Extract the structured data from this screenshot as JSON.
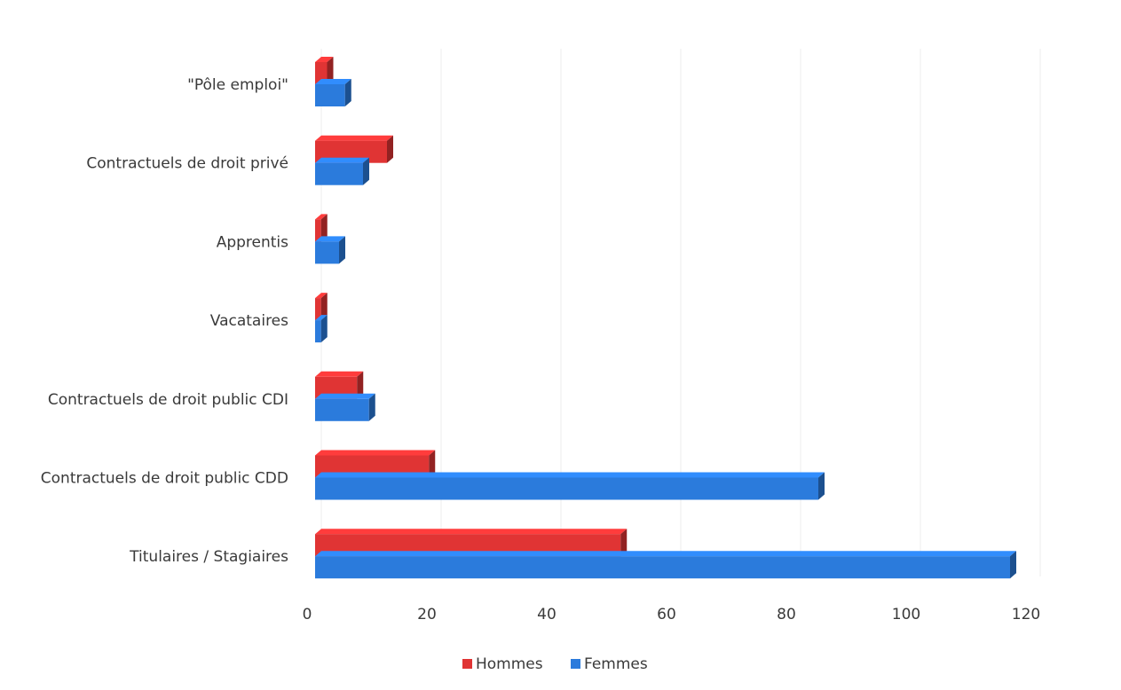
{
  "chart_data": {
    "type": "bar",
    "orientation": "horizontal",
    "style": "3d",
    "categories": [
      "\"Pôle emploi\"",
      "Contractuels de droit privé",
      "Apprentis",
      "Vacataires",
      "Contractuels de droit public CDI",
      "Contractuels de droit public CDD",
      "Titulaires / Stagiaires"
    ],
    "series": [
      {
        "name": "Hommes",
        "color": "#e03434",
        "values": [
          2,
          12,
          1,
          1,
          7,
          19,
          51
        ]
      },
      {
        "name": "Femmes",
        "color": "#2b7bdc",
        "values": [
          5,
          8,
          4,
          1,
          9,
          84,
          116
        ]
      }
    ],
    "xticks": [
      "0",
      "20",
      "40",
      "60",
      "80",
      "100",
      "120"
    ],
    "xlim": [
      0,
      120
    ],
    "grid": true,
    "legend_position": "bottom"
  }
}
